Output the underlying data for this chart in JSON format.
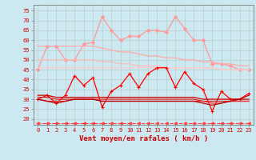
{
  "background_color": "#cce8f0",
  "grid_color": "#bbcccc",
  "xlabel": "Vent moyen/en rafales ( km/h )",
  "x_ticks": [
    0,
    1,
    2,
    3,
    4,
    5,
    6,
    7,
    8,
    9,
    10,
    11,
    12,
    13,
    14,
    15,
    16,
    17,
    18,
    19,
    20,
    21,
    22,
    23
  ],
  "ylim": [
    17,
    78
  ],
  "yticks": [
    20,
    25,
    30,
    35,
    40,
    45,
    50,
    55,
    60,
    65,
    70,
    75
  ],
  "series": [
    {
      "color": "#ff9999",
      "lw": 0.9,
      "marker": "D",
      "ms": 2.0,
      "ls": "-",
      "values": [
        45,
        57,
        57,
        50,
        50,
        58,
        59,
        72,
        65,
        60,
        62,
        62,
        65,
        65,
        64,
        72,
        66,
        60,
        60,
        48,
        48,
        47,
        45,
        45
      ]
    },
    {
      "color": "#ffaaaa",
      "lw": 0.9,
      "marker": "",
      "ms": 0,
      "ls": "-",
      "values": [
        57,
        57,
        57,
        57,
        57,
        57,
        57,
        56,
        55,
        54,
        54,
        53,
        52,
        52,
        51,
        51,
        50,
        50,
        49,
        49,
        48,
        48,
        47,
        47
      ]
    },
    {
      "color": "#ffbbbb",
      "lw": 0.9,
      "marker": "",
      "ms": 0,
      "ls": "-",
      "values": [
        50,
        50,
        50,
        50,
        50,
        50,
        50,
        49,
        49,
        48,
        48,
        47,
        47,
        47,
        46,
        46,
        46,
        46,
        46,
        46,
        45,
        45,
        45,
        45
      ]
    },
    {
      "color": "#ffcccc",
      "lw": 0.9,
      "marker": "",
      "ms": 0,
      "ls": "-",
      "values": [
        46,
        46,
        46,
        46,
        46,
        46,
        46,
        46,
        46,
        46,
        46,
        46,
        46,
        46,
        46,
        46,
        46,
        46,
        46,
        46,
        45,
        45,
        45,
        45
      ]
    },
    {
      "color": "#ff0000",
      "lw": 0.9,
      "marker": "+",
      "ms": 3.5,
      "ls": "-",
      "values": [
        30,
        32,
        28,
        32,
        42,
        37,
        41,
        26,
        34,
        37,
        43,
        36,
        43,
        46,
        46,
        36,
        44,
        38,
        35,
        24,
        34,
        30,
        30,
        33
      ]
    },
    {
      "color": "#cc0000",
      "lw": 0.9,
      "marker": "",
      "ms": 0,
      "ls": "-",
      "values": [
        32,
        32,
        31,
        31,
        31,
        31,
        31,
        31,
        31,
        31,
        31,
        31,
        31,
        31,
        31,
        31,
        31,
        31,
        30,
        30,
        30,
        30,
        30,
        30
      ]
    },
    {
      "color": "#dd2222",
      "lw": 0.9,
      "marker": "",
      "ms": 0,
      "ls": "-",
      "values": [
        31,
        31,
        30,
        30,
        30,
        30,
        30,
        30,
        30,
        30,
        30,
        30,
        30,
        30,
        30,
        30,
        30,
        30,
        29,
        29,
        29,
        29,
        29,
        29
      ]
    },
    {
      "color": "#ee3333",
      "lw": 0.9,
      "marker": "",
      "ms": 0,
      "ls": "-",
      "values": [
        30,
        29,
        29,
        29,
        30,
        30,
        30,
        29,
        29,
        29,
        29,
        29,
        29,
        29,
        29,
        29,
        29,
        29,
        29,
        28,
        28,
        29,
        29,
        29
      ]
    },
    {
      "color": "#bb0000",
      "lw": 0.9,
      "marker": "",
      "ms": 0,
      "ls": "-",
      "values": [
        30,
        29,
        28,
        29,
        30,
        30,
        30,
        29,
        29,
        29,
        29,
        29,
        29,
        29,
        29,
        29,
        29,
        29,
        28,
        27,
        28,
        29,
        30,
        32
      ]
    },
    {
      "color": "#ff4444",
      "lw": 0.8,
      "marker": "<",
      "ms": 2.5,
      "ls": "--",
      "values": [
        18,
        18,
        18,
        18,
        18,
        18,
        18,
        18,
        18,
        18,
        18,
        18,
        18,
        18,
        18,
        18,
        18,
        18,
        18,
        18,
        18,
        18,
        18,
        18
      ]
    }
  ]
}
